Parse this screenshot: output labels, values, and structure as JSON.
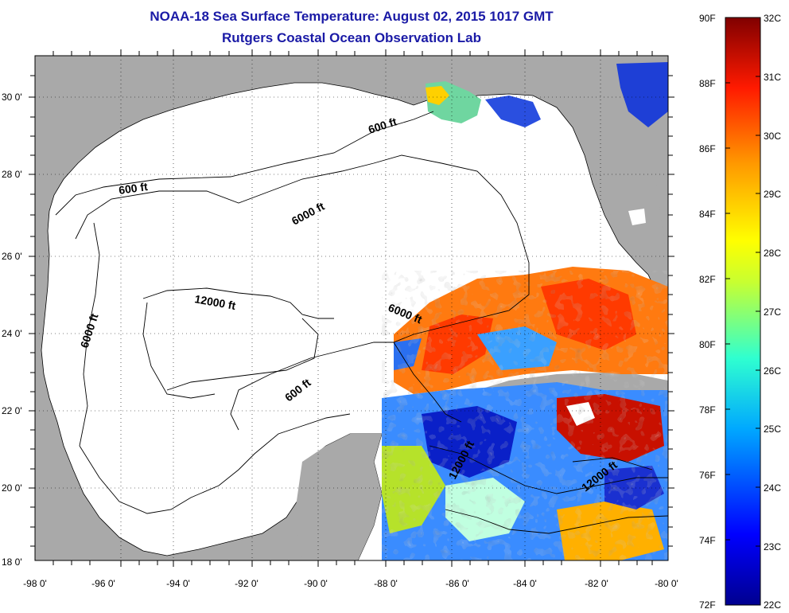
{
  "title": "NOAA-18 Sea Surface Temperature:  August 02, 2015 1017 GMT",
  "subtitle": "Rutgers Coastal Ocean Observation Lab",
  "axes": {
    "lat_ticks": [
      "30 0'",
      "28 0'",
      "26 0'",
      "24 0'",
      "22 0'",
      "20 0'",
      "18 0'"
    ],
    "lon_ticks": [
      "-98 0'",
      "-96 0'",
      "-94 0'",
      "-92 0'",
      "-90 0'",
      "-88 0'",
      "-86 0'",
      "-84 0'",
      "-82 0'",
      "-80 0'"
    ]
  },
  "contour_labels": [
    "600 ft",
    "600 ft",
    "6000 ft",
    "12000 ft",
    "6000 ft",
    "6000 ft",
    "600 ft",
    "12000 ft",
    "12000 ft"
  ],
  "colorbar": {
    "f_labels": [
      "90F",
      "88F",
      "86F",
      "84F",
      "82F",
      "80F",
      "78F",
      "76F",
      "74F",
      "72F"
    ],
    "c_labels": [
      "32C",
      "31C",
      "30C",
      "29C",
      "28C",
      "27C",
      "26C",
      "25C",
      "24C",
      "23C",
      "22C"
    ]
  },
  "colors": {
    "title": "#1a1aa6",
    "land": "#a9a9a9",
    "no_data": "#ffffff"
  }
}
